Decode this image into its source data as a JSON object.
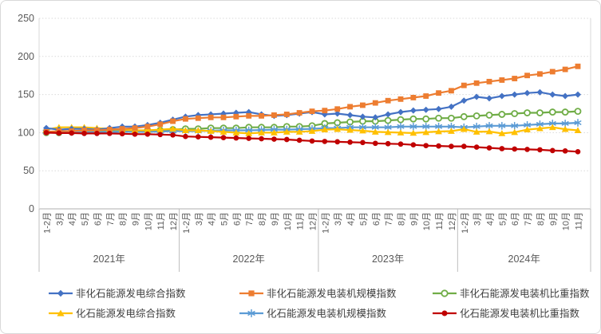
{
  "chart": {
    "background": "#ffffff",
    "border_color": "#d9d9d9",
    "axis_color": "#bfbfbf",
    "grid_color": "#d9d9d9",
    "tick_label_color": "#595959",
    "legend_text_color": "#404040"
  },
  "chart_data": {
    "type": "line",
    "title": "",
    "xlabel": "",
    "ylabel": "",
    "ylim": [
      0,
      250
    ],
    "y_ticks": [
      0,
      50,
      100,
      150,
      200,
      250
    ],
    "grid": "horizontal dotted lines at each y tick",
    "legend_position": "bottom, 2 rows x 3 columns",
    "year_groups": [
      {
        "label": "2021年",
        "months": [
          "1-2月",
          "3月",
          "4月",
          "5月",
          "6月",
          "7月",
          "8月",
          "9月",
          "10月",
          "11月",
          "12月"
        ]
      },
      {
        "label": "2022年",
        "months": [
          "1-2月",
          "3月",
          "4月",
          "5月",
          "6月",
          "7月",
          "8月",
          "9月",
          "10月",
          "11月",
          "12月"
        ]
      },
      {
        "label": "2023年",
        "months": [
          "1-2月",
          "3月",
          "4月",
          "5月",
          "6月",
          "7月",
          "8月",
          "9月",
          "10月",
          "11月",
          "12月"
        ]
      },
      {
        "label": "2024年",
        "months": [
          "1-2月",
          "3月",
          "4月",
          "5月",
          "6月",
          "7月",
          "8月",
          "9月",
          "10月",
          "11月"
        ]
      }
    ],
    "series": [
      {
        "name": "非化石能源发电综合指数",
        "color": "#4472C4",
        "marker": "diamond",
        "values": [
          106,
          104,
          105,
          105,
          104,
          106,
          108,
          108,
          110,
          113,
          117,
          121,
          123,
          124,
          125,
          126,
          127,
          124,
          122,
          123,
          125,
          127,
          124,
          125,
          123,
          121,
          120,
          124,
          127,
          129,
          130,
          131,
          134,
          142,
          147,
          145,
          148,
          150,
          152,
          153,
          150,
          148,
          150
        ]
      },
      {
        "name": "非化石能源发电装机规模指数",
        "color": "#ED7D31",
        "marker": "square",
        "values": [
          101,
          102,
          102,
          103,
          103,
          104,
          105,
          106,
          108,
          111,
          115,
          118,
          119,
          120,
          120,
          121,
          122,
          122,
          123,
          124,
          126,
          128,
          129,
          131,
          134,
          136,
          139,
          142,
          144,
          146,
          148,
          152,
          155,
          162,
          165,
          167,
          169,
          171,
          175,
          177,
          180,
          183,
          187
        ]
      },
      {
        "name": "非化石能源发电装机比重指数",
        "color": "#70AD47",
        "marker": "circle-open",
        "values": [
          100,
          100,
          101,
          101,
          101,
          102,
          102,
          102,
          103,
          103,
          104,
          105,
          105,
          106,
          106,
          106,
          107,
          107,
          107,
          108,
          108,
          109,
          112,
          113,
          114,
          115,
          115,
          116,
          117,
          118,
          118,
          119,
          119,
          121,
          122,
          123,
          124,
          125,
          126,
          126,
          127,
          127,
          128
        ]
      },
      {
        "name": "化石能源发电综合指数",
        "color": "#FFC000",
        "marker": "triangle",
        "values": [
          104,
          107,
          107,
          107,
          106,
          105,
          104,
          103,
          103,
          104,
          105,
          103,
          103,
          102,
          101,
          100,
          99,
          100,
          100,
          101,
          101,
          102,
          104,
          104.5,
          103.5,
          102.5,
          101,
          100.5,
          100,
          99.5,
          100.5,
          101.5,
          102,
          104.5,
          101,
          101.5,
          99,
          100.5,
          104,
          105.5,
          107,
          104.5,
          103
        ]
      },
      {
        "name": "化石能源发电装机规模指数",
        "color": "#5B9BD5",
        "marker": "asterisk",
        "values": [
          101,
          101,
          101,
          100.5,
          100.5,
          101,
          101,
          101,
          101,
          101.5,
          102,
          102,
          102,
          102.5,
          103,
          103,
          103,
          103.5,
          104,
          104,
          104.5,
          105,
          106,
          106,
          107,
          107,
          107,
          107,
          108,
          108,
          108,
          108,
          108,
          107,
          108,
          109,
          109,
          109,
          110,
          111,
          112,
          112,
          113
        ]
      },
      {
        "name": "化石能源发电装机比重指数",
        "color": "#C00000",
        "marker": "circle",
        "values": [
          100,
          99.5,
          99.5,
          99,
          99,
          99,
          98.5,
          98,
          98,
          97.5,
          97,
          95,
          94.5,
          94,
          93.5,
          93,
          92.5,
          92,
          91.5,
          91,
          90,
          89,
          88.5,
          88,
          87.5,
          87,
          86,
          85.5,
          85,
          84,
          83,
          82.5,
          82,
          82,
          81,
          80,
          79,
          78.5,
          78,
          77.5,
          76.5,
          76,
          75
        ]
      }
    ]
  }
}
